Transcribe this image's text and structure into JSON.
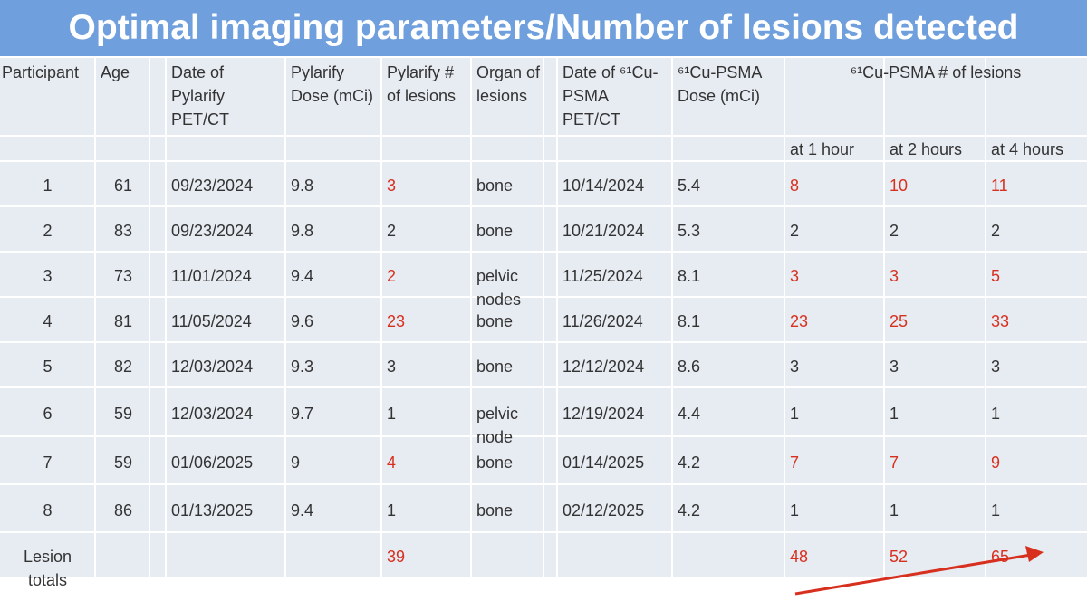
{
  "header": {
    "title": "Optimal imaging parameters/Number of lesions detected"
  },
  "table": {
    "columns": [
      "Participant",
      "Age",
      "Date of Pylarify PET/CT",
      "Pylarify Dose (mCi)",
      "Pylarify # of lesions",
      "Organ of lesions",
      "Date of ⁶¹Cu-PSMA PET/CT",
      "⁶¹Cu-PSMA Dose (mCi)"
    ],
    "group_header": "⁶¹Cu-PSMA # of lesions",
    "subcolumns": [
      "at 1 hour",
      "at 2 hours",
      "at 4 hours"
    ],
    "highlight_color": "#d7301f",
    "highlight_columns": [
      4,
      8,
      9,
      10
    ],
    "rows": [
      {
        "cells": [
          "1",
          "61",
          "09/23/2024",
          "9.8",
          "3",
          "bone",
          "10/14/2024",
          "5.4",
          "8",
          "10",
          "11"
        ],
        "highlight": true
      },
      {
        "cells": [
          "2",
          "83",
          "09/23/2024",
          "9.8",
          "2",
          "bone",
          "10/21/2024",
          "5.3",
          "2",
          "2",
          "2"
        ],
        "highlight": false
      },
      {
        "cells": [
          "3",
          "73",
          "11/01/2024",
          "9.4",
          "2",
          "pelvic nodes",
          "11/25/2024",
          "8.1",
          "3",
          "3",
          "5"
        ],
        "highlight": true
      },
      {
        "cells": [
          "4",
          "81",
          "11/05/2024",
          "9.6",
          "23",
          "bone",
          "11/26/2024",
          "8.1",
          "23",
          "25",
          "33"
        ],
        "highlight": true
      },
      {
        "cells": [
          "5",
          "82",
          "12/03/2024",
          "9.3",
          "3",
          "bone",
          "12/12/2024",
          "8.6",
          "3",
          "3",
          "3"
        ],
        "highlight": false
      },
      {
        "cells": [
          "6",
          "59",
          "12/03/2024",
          "9.7",
          "1",
          "pelvic node",
          "12/19/2024",
          "4.4",
          "1",
          "1",
          "1"
        ],
        "highlight": false
      },
      {
        "cells": [
          "7",
          "59",
          "01/06/2025",
          "9",
          "4",
          "bone",
          "01/14/2025",
          "4.2",
          "7",
          "7",
          "9"
        ],
        "highlight": true
      },
      {
        "cells": [
          "8",
          "86",
          "01/13/2025",
          "9.4",
          "1",
          "bone",
          "02/12/2025",
          "4.2",
          "1",
          "1",
          "1"
        ],
        "highlight": false
      }
    ],
    "totals": {
      "label": "Lesion totals",
      "pylarify_lesions": "39",
      "at_1_hour": "48",
      "at_2_hours": "52",
      "at_4_hours": "65"
    }
  }
}
